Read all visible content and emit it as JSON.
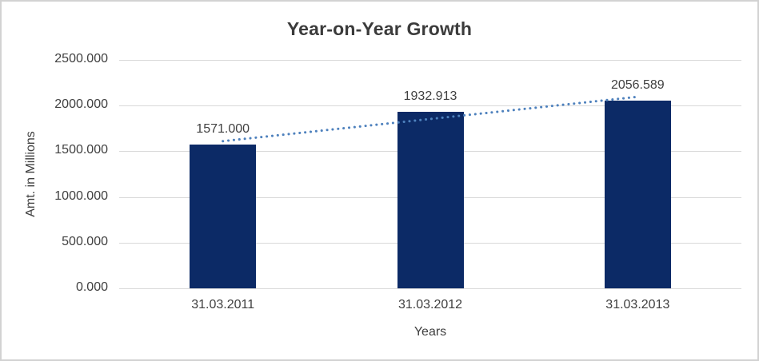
{
  "chart_data": {
    "type": "bar",
    "title": "Year-on-Year Growth",
    "xlabel": "Years",
    "ylabel": "Amt. in Millions",
    "categories": [
      "31.03.2011",
      "31.03.2012",
      "31.03.2013"
    ],
    "values": [
      1571.0,
      1932.913,
      2056.589
    ],
    "data_labels": [
      "1571.000",
      "1932.913",
      "2056.589"
    ],
    "ylim": [
      0,
      2500
    ],
    "yticks": [
      {
        "value": 2500,
        "label": "2500.000"
      },
      {
        "value": 2000,
        "label": "2000.000"
      },
      {
        "value": 1500,
        "label": "1500.000"
      },
      {
        "value": 1000,
        "label": "1000.000"
      },
      {
        "value": 500,
        "label": "500.000"
      },
      {
        "value": 0,
        "label": "0.000"
      }
    ],
    "grid": true,
    "legend": "none",
    "trendline": {
      "type": "linear",
      "style": "dotted",
      "start_value": 1610.7,
      "end_value": 2096.3
    },
    "colors": {
      "bar": "#0C2A66",
      "trendline": "#4E81BD",
      "gridline": "#D9D9D9",
      "text": "#404040",
      "title_text": "#3B3B3B",
      "background": "#FFFFFF",
      "border": "#D2D2D2"
    }
  }
}
